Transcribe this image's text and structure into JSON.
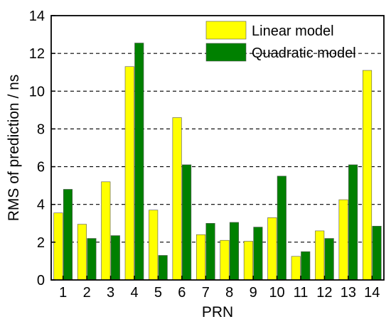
{
  "chart_data": {
    "type": "bar",
    "categories": [
      "1",
      "2",
      "3",
      "4",
      "5",
      "6",
      "7",
      "8",
      "9",
      "10",
      "11",
      "12",
      "13",
      "14"
    ],
    "series": [
      {
        "name": "Linear model",
        "color": "#ffff00",
        "values": [
          3.55,
          2.95,
          5.2,
          11.3,
          3.7,
          8.6,
          2.4,
          2.1,
          2.05,
          3.3,
          1.25,
          2.6,
          4.25,
          11.1
        ]
      },
      {
        "name": "Quadratic model",
        "color": "#008000",
        "values": [
          4.8,
          2.2,
          2.35,
          12.55,
          1.3,
          6.1,
          3.0,
          3.05,
          2.8,
          5.5,
          1.5,
          2.2,
          6.1,
          2.85
        ]
      }
    ],
    "title": "",
    "xlabel": "PRN",
    "ylabel": "RMS of prediction / ns",
    "ylim": [
      0,
      14
    ],
    "yticks": [
      0,
      2,
      4,
      6,
      8,
      10,
      12,
      14
    ],
    "grid": "horizontal dashed",
    "legend_position": "top-right"
  }
}
